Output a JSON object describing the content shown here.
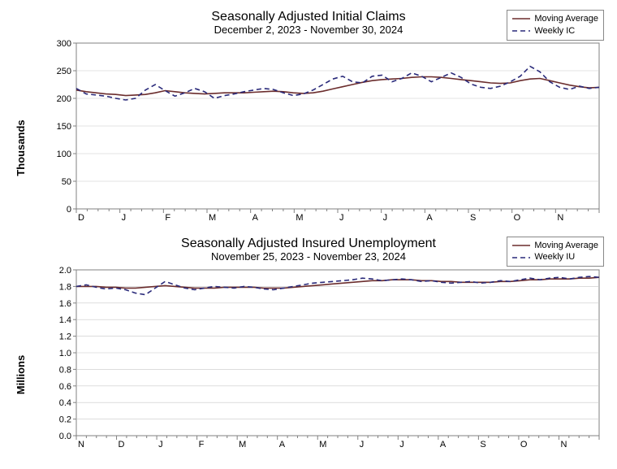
{
  "chart1": {
    "type": "line",
    "title": "Seasonally Adjusted Initial Claims",
    "subtitle": "December 2, 2023 - November 30, 2024",
    "y_label": "Thousands",
    "y_min": 0,
    "y_max": 300,
    "y_step": 50,
    "x_labels": [
      "D",
      "J",
      "F",
      "M",
      "A",
      "M",
      "J",
      "J",
      "A",
      "S",
      "O",
      "N"
    ],
    "legend": [
      {
        "label": "Moving Average",
        "color": "#6b2d2d",
        "dash": "",
        "width": 1.6
      },
      {
        "label": "Weekly IC",
        "color": "#2a2a7a",
        "dash": "6,4",
        "width": 1.6
      }
    ],
    "series_moving_avg": {
      "color": "#6b2d2d",
      "dash": "",
      "width": 1.6,
      "values": [
        215,
        212,
        210,
        208,
        207,
        205,
        206,
        207,
        210,
        214,
        212,
        210,
        209,
        208,
        209,
        210,
        210,
        210,
        211,
        212,
        213,
        212,
        210,
        209,
        210,
        213,
        217,
        221,
        225,
        229,
        232,
        234,
        235,
        236,
        238,
        239,
        239,
        238,
        236,
        234,
        232,
        230,
        228,
        227,
        228,
        232,
        235,
        236,
        232,
        228,
        224,
        221,
        219,
        220
      ]
    },
    "series_weekly": {
      "color": "#2a2a7a",
      "dash": "6,4",
      "width": 1.6,
      "values": [
        218,
        208,
        206,
        204,
        200,
        197,
        200,
        215,
        225,
        214,
        204,
        210,
        218,
        212,
        200,
        205,
        208,
        212,
        215,
        218,
        216,
        210,
        205,
        208,
        215,
        225,
        235,
        240,
        230,
        228,
        240,
        242,
        230,
        236,
        246,
        240,
        230,
        238,
        246,
        238,
        226,
        220,
        218,
        222,
        230,
        240,
        258,
        248,
        230,
        220,
        216,
        222,
        218,
        220
      ]
    },
    "background_color": "#ffffff",
    "grid_color": "#c8c8c8",
    "axis_color": "#808080",
    "title_fontsize": 16,
    "subtitle_fontsize": 13,
    "tick_fontsize": 11,
    "legend_fontsize": 11
  },
  "chart2": {
    "type": "line",
    "title": "Seasonally Adjusted Insured Unemployment",
    "subtitle": "November 25, 2023 - November 23, 2024",
    "y_label": "Millions",
    "y_min": 0.0,
    "y_max": 2.0,
    "y_step": 0.2,
    "x_labels": [
      "N",
      "D",
      "J",
      "F",
      "M",
      "A",
      "M",
      "J",
      "J",
      "A",
      "S",
      "O",
      "N"
    ],
    "legend": [
      {
        "label": "Moving Average",
        "color": "#6b2d2d",
        "dash": "",
        "width": 1.6
      },
      {
        "label": "Weekly IU",
        "color": "#2a2a7a",
        "dash": "6,4",
        "width": 1.6
      }
    ],
    "series_moving_avg": {
      "color": "#6b2d2d",
      "dash": "",
      "width": 1.6,
      "values": [
        1.8,
        1.8,
        1.8,
        1.79,
        1.79,
        1.78,
        1.78,
        1.79,
        1.8,
        1.81,
        1.8,
        1.79,
        1.78,
        1.78,
        1.78,
        1.79,
        1.79,
        1.79,
        1.79,
        1.78,
        1.78,
        1.78,
        1.79,
        1.8,
        1.81,
        1.82,
        1.83,
        1.84,
        1.85,
        1.86,
        1.87,
        1.87,
        1.88,
        1.88,
        1.88,
        1.87,
        1.87,
        1.86,
        1.86,
        1.85,
        1.85,
        1.85,
        1.85,
        1.86,
        1.86,
        1.87,
        1.88,
        1.88,
        1.89,
        1.89,
        1.89,
        1.9,
        1.9,
        1.91
      ]
    },
    "series_weekly": {
      "color": "#2a2a7a",
      "dash": "6,4",
      "width": 1.6,
      "values": [
        1.8,
        1.82,
        1.79,
        1.77,
        1.78,
        1.76,
        1.72,
        1.7,
        1.78,
        1.86,
        1.82,
        1.78,
        1.76,
        1.78,
        1.8,
        1.79,
        1.78,
        1.8,
        1.79,
        1.77,
        1.76,
        1.78,
        1.8,
        1.82,
        1.84,
        1.85,
        1.86,
        1.87,
        1.88,
        1.9,
        1.89,
        1.87,
        1.88,
        1.89,
        1.88,
        1.86,
        1.87,
        1.85,
        1.84,
        1.85,
        1.86,
        1.84,
        1.85,
        1.87,
        1.86,
        1.88,
        1.9,
        1.88,
        1.9,
        1.91,
        1.89,
        1.91,
        1.92,
        1.91
      ]
    },
    "background_color": "#ffffff",
    "grid_color": "#c8c8c8",
    "axis_color": "#808080",
    "title_fontsize": 16,
    "subtitle_fontsize": 13,
    "tick_fontsize": 11,
    "legend_fontsize": 11,
    "y_decimals": 1
  }
}
